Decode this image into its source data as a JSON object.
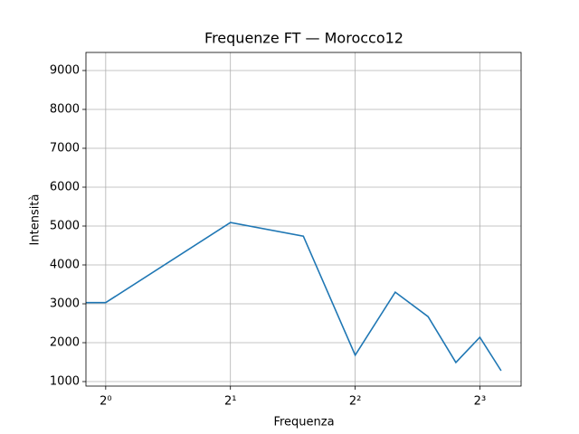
{
  "chart_data": {
    "type": "line",
    "title": "Frequenze FT — Morocco12",
    "x_label": "Frequenza",
    "y_label": "Intensità",
    "x": [
      0,
      1,
      2,
      3,
      4,
      5,
      6,
      7,
      8,
      9
    ],
    "series": [
      {
        "name": "Intensità",
        "color": "#1f77b4",
        "values": [
          3030,
          3030,
          5090,
          4740,
          1680,
          3300,
          2670,
          1490,
          2140,
          1280
        ]
      }
    ],
    "xscale": "log2",
    "xlim": [
      0.896,
      10.06
    ],
    "xticks": [
      {
        "value": 1,
        "label": "2⁰"
      },
      {
        "value": 2,
        "label": "2¹"
      },
      {
        "value": 4,
        "label": "2²"
      },
      {
        "value": 8,
        "label": "2³"
      }
    ],
    "ylim": [
      884,
      9465
    ],
    "yticks": [
      1000,
      2000,
      3000,
      4000,
      5000,
      6000,
      7000,
      8000,
      9000
    ],
    "grid": true
  }
}
